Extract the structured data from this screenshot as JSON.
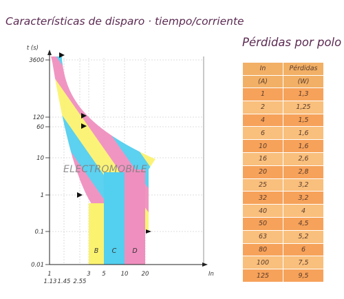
{
  "title": "Características de disparo · tiempo/corriente",
  "chart_data": {
    "type": "area",
    "title": "Características de disparo · tiempo/corriente",
    "xlabel": "In",
    "ylabel": "t (s)",
    "y_scale": "log",
    "x_ticks": [
      "1",
      "1.13",
      "1.45",
      "2.55",
      "3",
      "5",
      "10",
      "20"
    ],
    "y_ticks": [
      "0.01",
      "0.1",
      "1",
      "10",
      "60",
      "120",
      "3600"
    ],
    "watermark": "ELECTROMOBILE",
    "curves": [
      {
        "name": "B",
        "magnetic_trip_range": [
          3,
          5
        ]
      },
      {
        "name": "C",
        "magnetic_trip_range": [
          5,
          10
        ]
      },
      {
        "name": "D",
        "magnetic_trip_range": [
          10,
          20
        ]
      }
    ],
    "colors": {
      "pink": "#ef8fbf",
      "cyan": "#53cfef",
      "yellow": "#fbf270",
      "axis": "#222222",
      "grid": "#d3d3d3",
      "title": "#5b2a52",
      "arrow": "#111111"
    }
  },
  "table": {
    "title": "Pérdidas por polo",
    "headers": [
      [
        "In",
        "(A)"
      ],
      [
        "Pérdidas",
        "(W)"
      ]
    ],
    "rows": [
      [
        "1",
        "1,3"
      ],
      [
        "2",
        "1,25"
      ],
      [
        "4",
        "1,5"
      ],
      [
        "6",
        "1,6"
      ],
      [
        "10",
        "1,6"
      ],
      [
        "16",
        "2,6"
      ],
      [
        "20",
        "2,8"
      ],
      [
        "25",
        "3,2"
      ],
      [
        "32",
        "3,2"
      ],
      [
        "40",
        "4"
      ],
      [
        "50",
        "4,5"
      ],
      [
        "63",
        "5,2"
      ],
      [
        "80",
        "6"
      ],
      [
        "100",
        "7,5"
      ],
      [
        "125",
        "9,5"
      ]
    ]
  }
}
